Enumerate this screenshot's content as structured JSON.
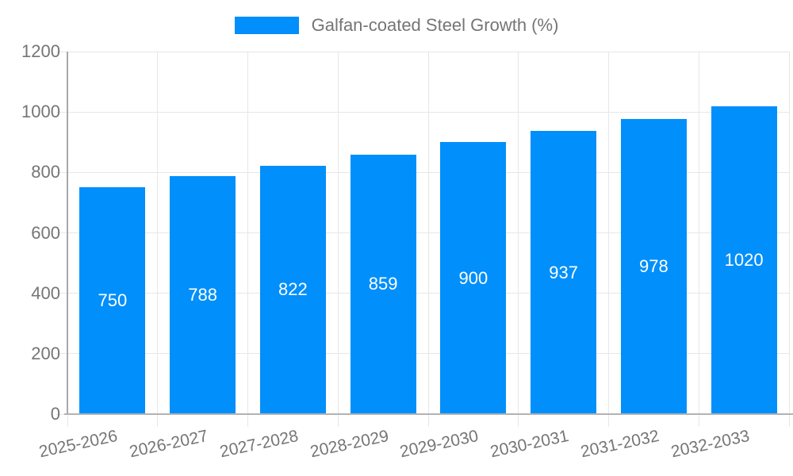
{
  "legend": {
    "label": "Galfan-coated Steel Growth (%)",
    "swatch_color": "#008FFB"
  },
  "chart_data": {
    "type": "bar",
    "title": "",
    "xlabel": "",
    "ylabel": "",
    "categories": [
      "2025-2026",
      "2026-2027",
      "2027-2028",
      "2028-2029",
      "2029-2030",
      "2030-2031",
      "2031-2032",
      "2032-2033"
    ],
    "series": [
      {
        "name": "Galfan-coated Steel Growth (%)",
        "values": [
          750,
          788,
          822,
          859,
          900,
          937,
          978,
          1020
        ]
      }
    ],
    "value_labels": [
      "750",
      "788",
      "822",
      "859",
      "900",
      "937",
      "978",
      "1020"
    ],
    "ylim": [
      0,
      1200
    ],
    "yticks": [
      0,
      200,
      400,
      600,
      800,
      1000,
      1200
    ],
    "grid": true,
    "legend_position": "top",
    "colors": {
      "bar": "#008FFB",
      "value_label": "#ffffff",
      "axis_text": "#757575",
      "gridline": "#e7e7e7",
      "axis_line": "#b3b3b3"
    }
  }
}
